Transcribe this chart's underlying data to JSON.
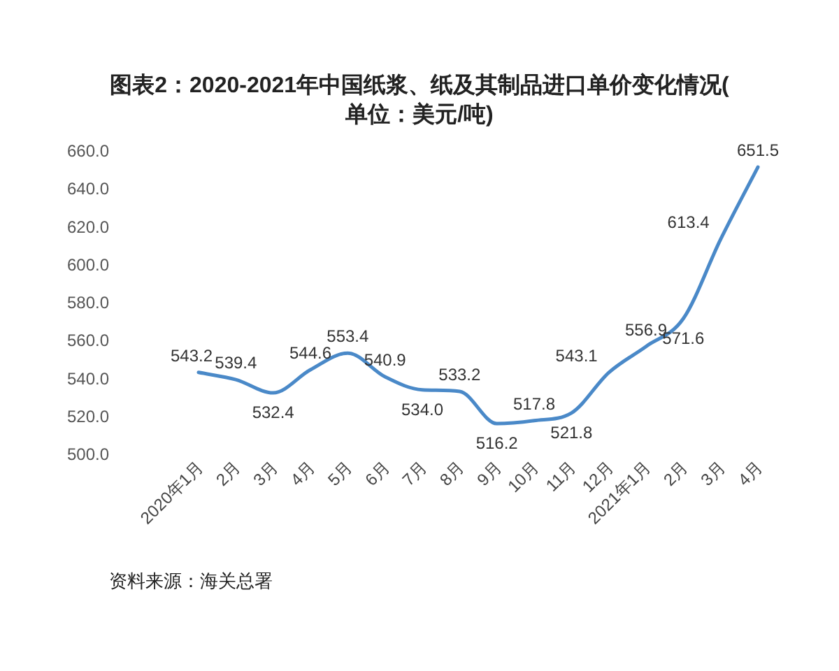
{
  "chart_data": {
    "type": "line",
    "title": "图表2：2020-2021年中国纸浆、纸及其制品进口单价变化情况(单位：美元/吨)",
    "annotations": [
      "资料来源：海关总署"
    ],
    "categories": [
      "2020年1月",
      "2月",
      "3月",
      "4月",
      "5月",
      "6月",
      "7月",
      "8月",
      "9月",
      "10月",
      "11月",
      "12月",
      "2021年1月",
      "2月",
      "3月",
      "4月"
    ],
    "series": [
      {
        "color": "#4a89c8",
        "values": [
          543.2,
          539.4,
          532.4,
          544.6,
          553.4,
          540.9,
          534.0,
          533.2,
          516.2,
          517.8,
          521.8,
          543.1,
          556.9,
          571.6,
          613.4,
          651.5
        ],
        "value_labels": [
          "543.2",
          "539.4",
          "532.4",
          "544.6",
          "553.4",
          "540.9",
          "534.0",
          "533.2",
          "516.2",
          "517.8",
          "521.8",
          "543.1",
          "556.9",
          "571.6",
          "613.4",
          "651.5"
        ]
      }
    ],
    "ylim": [
      500,
      660
    ],
    "yticks": [
      {
        "value": 500,
        "label": "500.0"
      },
      {
        "value": 520,
        "label": "520.0"
      },
      {
        "value": 540,
        "label": "540.0"
      },
      {
        "value": 560,
        "label": "560.0"
      },
      {
        "value": 580,
        "label": "580.0"
      },
      {
        "value": 600,
        "label": "600.0"
      },
      {
        "value": 620,
        "label": "620.0"
      },
      {
        "value": 640,
        "label": "640.0"
      },
      {
        "value": 660,
        "label": "660.0"
      }
    ]
  }
}
